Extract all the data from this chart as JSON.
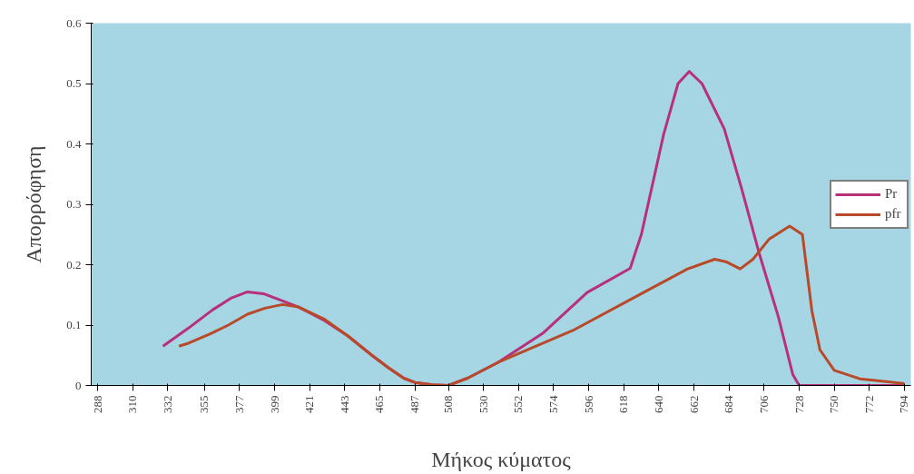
{
  "chart_data": {
    "type": "line",
    "xlabel": "Μήκος κύματος",
    "ylabel": "Απορρόφηση",
    "xlim": [
      284,
      798
    ],
    "ylim": [
      0,
      0.6
    ],
    "xticks": [
      288,
      310,
      332,
      355,
      377,
      399,
      421,
      443,
      465,
      487,
      508,
      530,
      552,
      574,
      596,
      618,
      640,
      662,
      684,
      706,
      728,
      750,
      772,
      794
    ],
    "yticks": [
      0,
      0.1,
      0.2,
      0.3,
      0.4,
      0.5,
      0.6
    ],
    "grid": false,
    "legend": "right",
    "marker": "none",
    "line_style": "solid",
    "series": [
      {
        "name": "Pr",
        "color": "#b8307a",
        "x": [
          329,
          345,
          360,
          372,
          382,
          392,
          404,
          414,
          430,
          445,
          460,
          470,
          480,
          487,
          498,
          508,
          520,
          539,
          567,
          595,
          622,
          629,
          643,
          652,
          659,
          667,
          681,
          692,
          703,
          715,
          724,
          728,
          740,
          760,
          794
        ],
        "values": [
          0.065,
          0.095,
          0.125,
          0.145,
          0.155,
          0.152,
          0.14,
          0.13,
          0.108,
          0.082,
          0.05,
          0.03,
          0.012,
          0.005,
          0.001,
          0,
          0.012,
          0.038,
          0.086,
          0.154,
          0.194,
          0.25,
          0.416,
          0.5,
          0.52,
          0.5,
          0.425,
          0.325,
          0.218,
          0.113,
          0.018,
          0,
          0,
          0,
          0
        ]
      },
      {
        "name": "pfr",
        "color": "#b84a2a",
        "x": [
          339,
          345,
          359,
          370,
          382,
          393,
          404,
          414,
          430,
          445,
          460,
          470,
          480,
          487,
          498,
          508,
          520,
          539,
          586,
          624,
          658,
          675,
          682,
          691,
          699,
          709,
          722,
          730,
          736,
          741,
          750,
          766,
          784,
          794
        ],
        "values": [
          0.065,
          0.07,
          0.086,
          0.1,
          0.118,
          0.128,
          0.134,
          0.13,
          0.11,
          0.082,
          0.05,
          0.03,
          0.012,
          0.005,
          0.001,
          0,
          0.012,
          0.038,
          0.091,
          0.145,
          0.193,
          0.209,
          0.205,
          0.193,
          0.209,
          0.242,
          0.264,
          0.25,
          0.123,
          0.059,
          0.025,
          0.011,
          0.006,
          0.003
        ]
      }
    ]
  }
}
